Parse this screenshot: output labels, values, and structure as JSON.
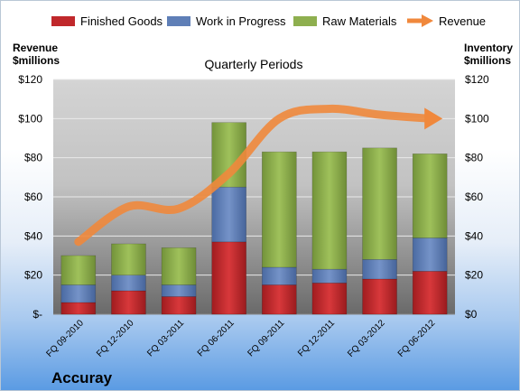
{
  "chart_data": {
    "type": "bar",
    "subtype": "stacked-bar-with-line",
    "title": "Quarterly Periods",
    "company": "Accuray",
    "left_axis_label": [
      "Revenue",
      "$millions"
    ],
    "right_axis_label": [
      "Inventory",
      "$millions"
    ],
    "ylim": [
      0,
      120
    ],
    "yticks": [
      0,
      20,
      40,
      60,
      80,
      100,
      120
    ],
    "left_tick_labels": [
      "$-",
      "$20",
      "$40",
      "$60",
      "$80",
      "$100",
      "$120"
    ],
    "right_tick_labels": [
      "$0",
      "$20",
      "$40",
      "$60",
      "$80",
      "$100",
      "$120"
    ],
    "categories": [
      "FQ 09-2010",
      "FQ 12-2010",
      "FQ 03-2011",
      "FQ 06-2011",
      "FQ 09-2011",
      "FQ 12-2011",
      "FQ 03-2012",
      "FQ 06-2012"
    ],
    "series": [
      {
        "name": "Finished Goods",
        "color": "#c0282b",
        "values": [
          6,
          12,
          9,
          37,
          15,
          16,
          18,
          22
        ]
      },
      {
        "name": "Work in Progress",
        "color": "#5f7fb7",
        "values": [
          9,
          8,
          6,
          28,
          9,
          7,
          10,
          17
        ]
      },
      {
        "name": "Raw Materials",
        "color": "#8eaf4f",
        "values": [
          15,
          16,
          19,
          33,
          59,
          60,
          57,
          43
        ]
      }
    ],
    "line_series": {
      "name": "Revenue",
      "color": "#f0883c",
      "values": [
        37,
        55,
        54,
        72,
        100,
        105,
        102,
        100
      ]
    },
    "legend_position": "top",
    "grid": true
  }
}
